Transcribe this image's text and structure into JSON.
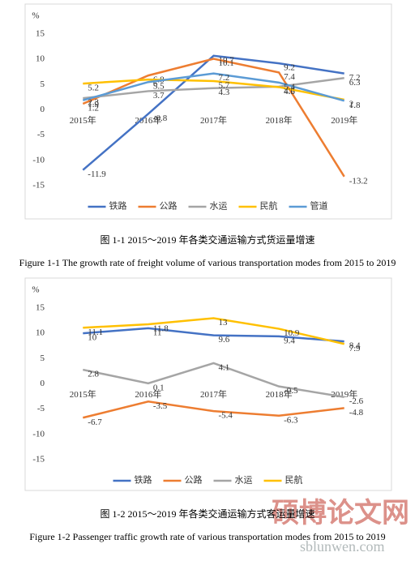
{
  "chart_data": [
    {
      "type": "line",
      "y_label": "%",
      "categories": [
        "2015年",
        "2016年",
        "2017年",
        "2018年",
        "2019年"
      ],
      "ylim": [
        -15,
        15
      ],
      "yticks": [
        -15,
        -10,
        -5,
        0,
        5,
        10,
        15
      ],
      "grid": false,
      "legend": "bottom",
      "series": [
        {
          "name": "铁路",
          "color": "#4472c4",
          "values": [
            -11.9,
            -0.8,
            10.7,
            9.2,
            7.2
          ]
        },
        {
          "name": "公路",
          "color": "#ed7d31",
          "values": [
            1.2,
            6.8,
            10.1,
            7.4,
            -13.2
          ]
        },
        {
          "name": "水运",
          "color": "#a5a5a5",
          "values": [
            2.3,
            3.7,
            4.3,
            4.6,
            6.3
          ]
        },
        {
          "name": "民航",
          "color": "#ffc000",
          "values": [
            5.2,
            6,
            5.7,
            4.5,
            2
          ]
        },
        {
          "name": "管道",
          "color": "#5b9bd5",
          "values": [
            1.9,
            5.5,
            7.2,
            5.4,
            1.8
          ]
        }
      ],
      "caption": "图 1-1 2015～2019 年各类交通运输方式货运量增速",
      "caption_en": "Figure 1-1 The growth rate of freight volume of various transportation modes from 2015 to 2019"
    },
    {
      "type": "line",
      "y_label": "%",
      "categories": [
        "2015年",
        "2016年",
        "2017年",
        "2018年",
        "2019年"
      ],
      "ylim": [
        -15,
        15
      ],
      "yticks": [
        -15,
        -10,
        -5,
        0,
        5,
        10,
        15
      ],
      "grid": false,
      "legend": "bottom",
      "series": [
        {
          "name": "铁路",
          "color": "#4472c4",
          "values": [
            10,
            11,
            9.6,
            9.4,
            8.4
          ]
        },
        {
          "name": "公路",
          "color": "#ed7d31",
          "values": [
            -6.7,
            -3.5,
            -5.4,
            -6.3,
            -4.8
          ]
        },
        {
          "name": "水运",
          "color": "#a5a5a5",
          "values": [
            2.8,
            0.1,
            4.1,
            -0.5,
            -2.6
          ]
        },
        {
          "name": "民航",
          "color": "#ffc000",
          "values": [
            11.1,
            11.8,
            13,
            10.9,
            7.9
          ]
        }
      ],
      "caption": "图 1-2 2015～2019 年各类交通运输方式客运量增速",
      "caption_en": "Figure 1-2 Passenger traffic growth rate of various transportation modes from 2015 to 2019"
    }
  ],
  "watermark": {
    "title": "硕博论文网",
    "url": "sblunwen.com"
  }
}
